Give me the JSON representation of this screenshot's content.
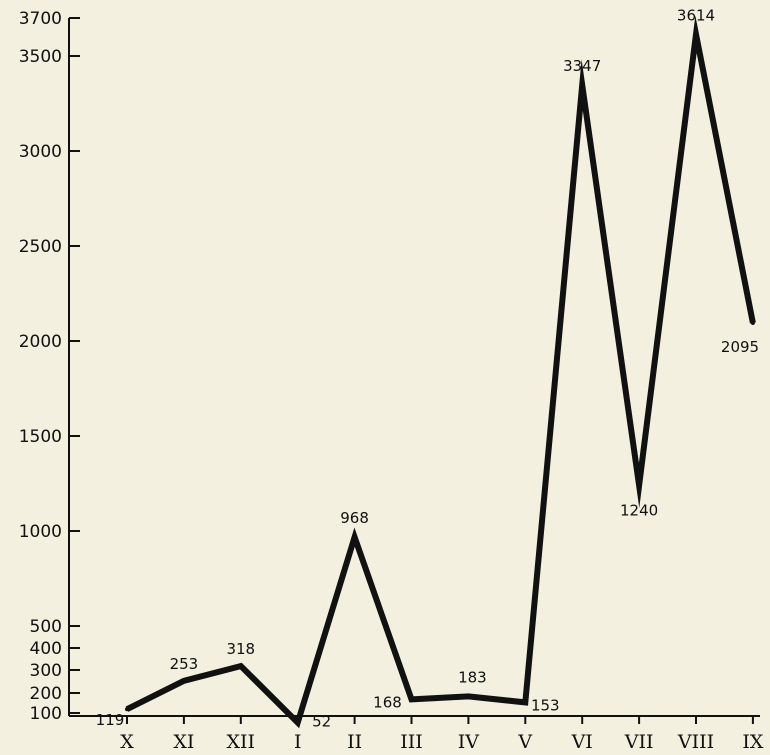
{
  "chart_data": {
    "type": "line",
    "title": "",
    "xlabel": "",
    "ylabel": "",
    "categories": [
      "X",
      "XI",
      "XII",
      "I",
      "II",
      "III",
      "IV",
      "V",
      "VI",
      "VII",
      "VIII",
      "IX"
    ],
    "series": [
      {
        "values": [
          119,
          253,
          318,
          52,
          968,
          168,
          183,
          153,
          3347,
          1240,
          3614,
          2095
        ]
      }
    ],
    "data_labels": [
      "119",
      "253",
      "318",
      "52",
      "968",
      "168",
      "183",
      "153",
      "3347",
      "1240",
      "3614",
      "2095"
    ],
    "y_ticks": [
      100,
      200,
      300,
      400,
      500,
      1000,
      1500,
      2000,
      2500,
      3000,
      3500,
      3700
    ],
    "y_tick_labels": [
      "100",
      "200",
      "300",
      "400",
      "500",
      "1000",
      "1500",
      "2000",
      "2500",
      "3000",
      "3500",
      "3700"
    ],
    "ylim": [
      100,
      3700
    ],
    "grid": false,
    "legend": "none",
    "colors": {
      "line": "#111111",
      "background": "#f3f0df"
    }
  }
}
